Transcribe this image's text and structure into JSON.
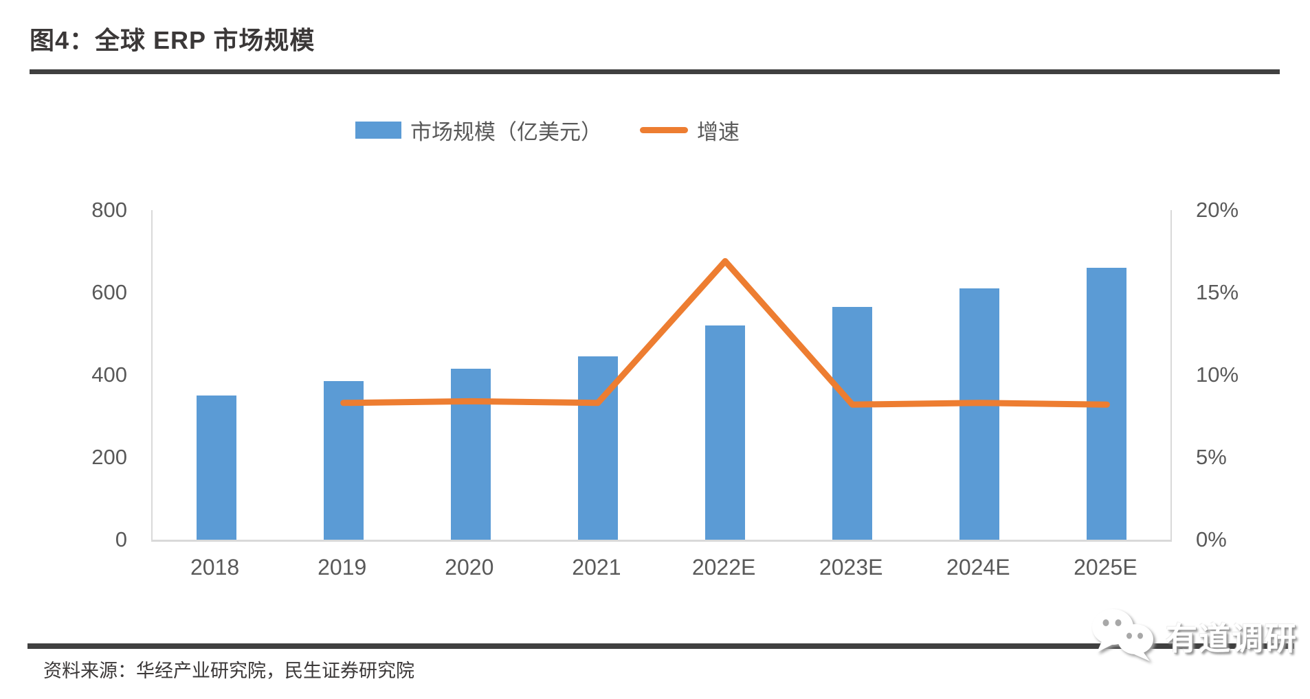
{
  "header": {
    "title": "图4：全球 ERP 市场规模"
  },
  "footer": {
    "source": "资料来源：华经产业研究院，民生证券研究院",
    "logo_text": "有道调研"
  },
  "chart_data": {
    "type": "bar+line",
    "categories": [
      "2018",
      "2019",
      "2020",
      "2021",
      "2022E",
      "2023E",
      "2024E",
      "2025E"
    ],
    "series": [
      {
        "name": "市场规模（亿美元）",
        "type": "bar",
        "axis": "left",
        "color": "#5B9BD5",
        "values": [
          350,
          385,
          415,
          445,
          520,
          565,
          610,
          660
        ]
      },
      {
        "name": "增速",
        "type": "line",
        "axis": "right",
        "color": "#ED7D31",
        "values": [
          null,
          8.3,
          8.4,
          8.3,
          16.9,
          8.2,
          8.3,
          8.2
        ]
      }
    ],
    "y_left": {
      "min": 0,
      "max": 800,
      "step": 200,
      "ticks": [
        "800",
        "600",
        "400",
        "200",
        "0"
      ]
    },
    "y_right": {
      "min": 0,
      "max": 20,
      "step": 5,
      "ticks": [
        "20%",
        "15%",
        "10%",
        "5%",
        "0%"
      ]
    },
    "grid": "none",
    "legend_position": "top-center"
  }
}
